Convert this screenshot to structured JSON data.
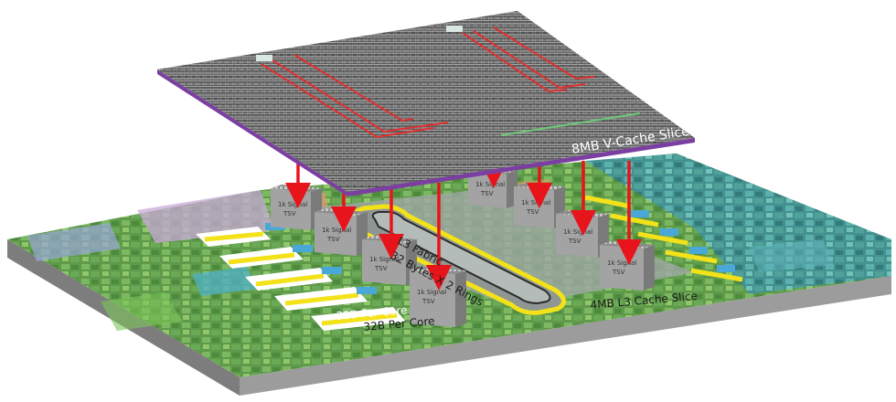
{
  "diagram": {
    "vcache_label": "8MB V-Cache Slice",
    "l3_fabric_label": "L3 Fabric",
    "rings_label": "32 Bytes X 2 Rings",
    "l3_cache_label": "4MB L3 Cache Slice",
    "per_core_label": "32B Per Core",
    "tsv_line1": "1k Signal",
    "tsv_line2": "TSV",
    "colors": {
      "arrow": "#e8141b",
      "fabric_ring": "#f3e21a",
      "vcache_edge": "#7a3fa0",
      "base_side": "#8a8a8a",
      "tsv_block": "#9b9b9b"
    }
  }
}
